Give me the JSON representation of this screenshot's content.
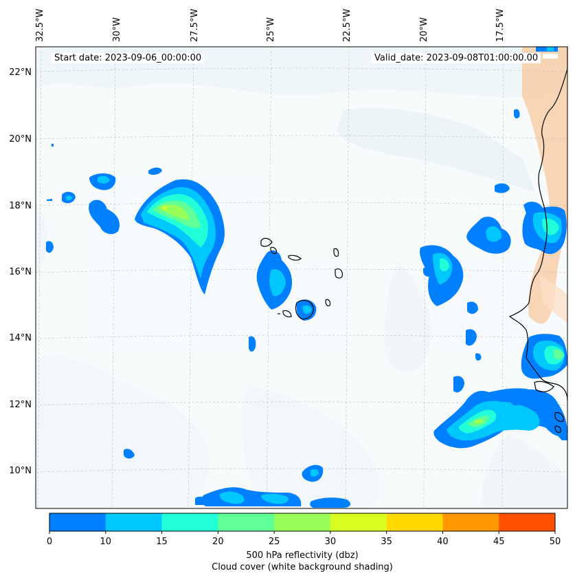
{
  "map": {
    "start_date": "Start date: 2023-09-06_00:00:00",
    "valid_date": "Valid_date: 2023-09-08T01:00:00.00",
    "lon_labels": [
      "32.5°W",
      "30°W",
      "27.5°W",
      "25°W",
      "22.5°W",
      "20°W",
      "17.5°W"
    ],
    "lat_labels": [
      "22°N",
      "20°N",
      "18°N",
      "16°N",
      "14°N",
      "12°N",
      "10°N"
    ]
  },
  "colorbar": {
    "ticks": [
      "0",
      "10",
      "15",
      "20",
      "25",
      "30",
      "35",
      "40",
      "45",
      "50"
    ],
    "colors": [
      "#0080ff",
      "#00c8ff",
      "#20ffd8",
      "#60ff98",
      "#98ff58",
      "#d8ff20",
      "#ffd800",
      "#ff9800",
      "#ff5000"
    ],
    "label_line1": "500 hPa reflectivity (dbz)",
    "label_line2": "Cloud cover (white background shading)"
  },
  "legend_colors": {
    "cloud_shade": "#dcecf2",
    "land_shade": "#f8cfa8",
    "coastline": "#000000"
  }
}
